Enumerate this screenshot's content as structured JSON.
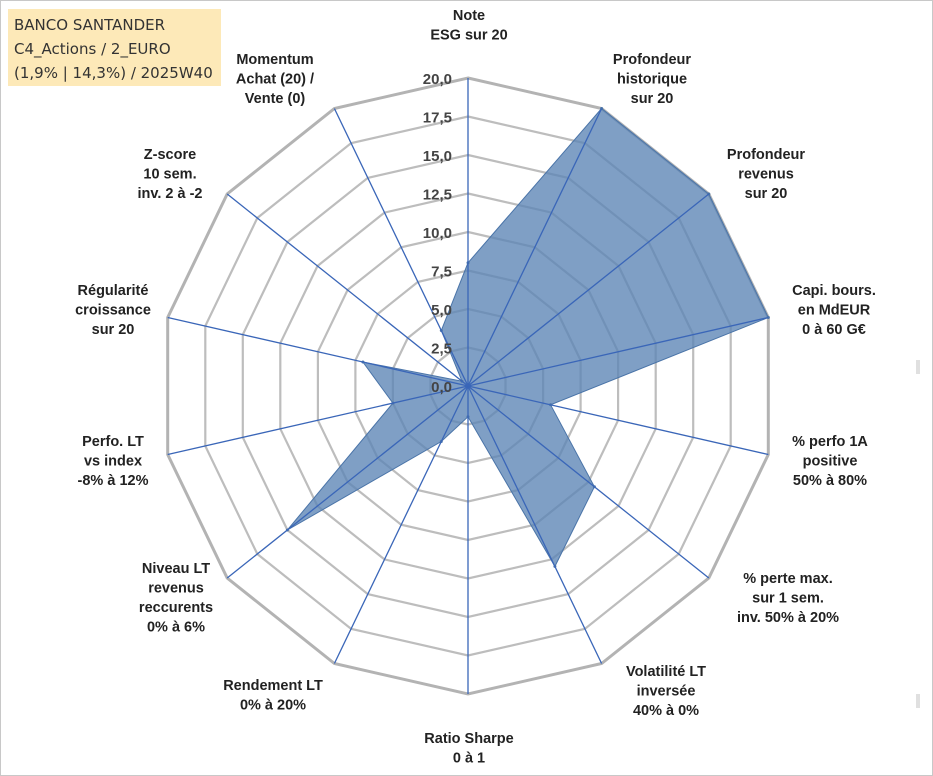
{
  "title": {
    "line1": "BANCO SANTANDER",
    "line2": "C4_Actions / 2_EURO",
    "line3": "(1,9% | 14,3%) / 2025W40"
  },
  "chart_data": {
    "type": "radar",
    "rmin": 0,
    "rmax": 20,
    "tick_step": 2.5,
    "tick_labels": [
      "0,0",
      "2,5",
      "5,0",
      "7,5",
      "10,0",
      "12,5",
      "15,0",
      "17,5",
      "20,0"
    ],
    "axes": [
      {
        "lines": [
          "Note",
          "ESG sur 20"
        ]
      },
      {
        "lines": [
          "Profondeur",
          "historique",
          "sur 20"
        ]
      },
      {
        "lines": [
          "Profondeur",
          "revenus",
          "sur 20"
        ]
      },
      {
        "lines": [
          "Capi. bours.",
          "en MdEUR",
          "0 à 60 G€"
        ]
      },
      {
        "lines": [
          "% perfo 1A",
          "positive",
          "50% à 80%"
        ]
      },
      {
        "lines": [
          "% perte max.",
          "sur 1 sem.",
          "inv. 50% à 20%"
        ]
      },
      {
        "lines": [
          "Volatilité LT",
          "inversée",
          "40% à 0%"
        ]
      },
      {
        "lines": [
          "Ratio Sharpe",
          "0 à 1"
        ]
      },
      {
        "lines": [
          "Rendement LT",
          "0% à 20%"
        ]
      },
      {
        "lines": [
          "Niveau LT",
          "revenus",
          "reccurents",
          "0% à 6%"
        ]
      },
      {
        "lines": [
          "Perfo. LT",
          "vs index",
          "-8% à 12%"
        ]
      },
      {
        "lines": [
          "Régularité",
          "croissance",
          "sur 20"
        ]
      },
      {
        "lines": [
          "Z-score",
          "10 sem.",
          "inv. 2 à -2"
        ]
      },
      {
        "lines": [
          "Momentum",
          "Achat (20) /",
          "Vente (0)"
        ]
      }
    ],
    "series": [
      {
        "values": [
          8.0,
          20.0,
          20.0,
          20.0,
          5.5,
          10.5,
          13.0,
          2.0,
          4.0,
          15.0,
          5.0,
          7.0,
          0.5,
          4.0
        ]
      }
    ],
    "colors": {
      "fill": "#5b84b5",
      "fill_opacity": 0.78,
      "spoke": "#3a66b8",
      "grid": "#bdbdbd",
      "outer_grid": "#b3b3b3"
    },
    "grid": true,
    "legend": "none"
  }
}
